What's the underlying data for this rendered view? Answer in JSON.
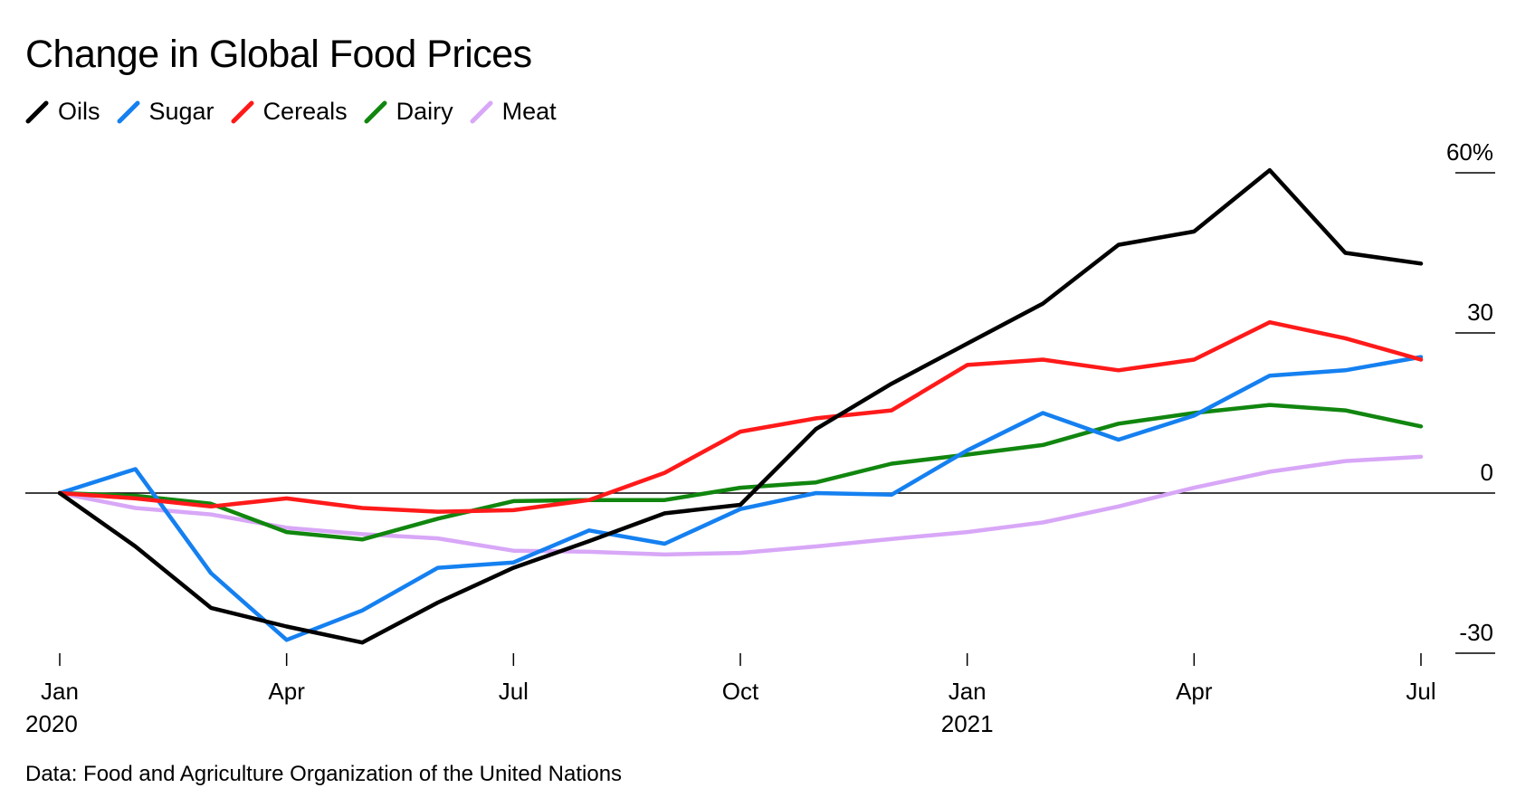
{
  "title": "Change in Global Food Prices",
  "source": "Data: Food and Agriculture Organization of the United Nations",
  "chart_data": {
    "type": "line",
    "title": "Change in Global Food Prices",
    "xlabel": "",
    "ylabel": "",
    "x": [
      "2020-01",
      "2020-02",
      "2020-03",
      "2020-04",
      "2020-05",
      "2020-06",
      "2020-07",
      "2020-08",
      "2020-09",
      "2020-10",
      "2020-11",
      "2020-12",
      "2021-01",
      "2021-02",
      "2021-03",
      "2021-04",
      "2021-05",
      "2021-06",
      "2021-07"
    ],
    "ylim": [
      -30,
      60
    ],
    "y_ticks": [
      {
        "value": 60,
        "label": "60%"
      },
      {
        "value": 30,
        "label": "30"
      },
      {
        "value": 0,
        "label": "0"
      },
      {
        "value": -30,
        "label": "-30"
      }
    ],
    "x_ticks": [
      {
        "x": "2020-01",
        "label": "Jan",
        "year": "2020"
      },
      {
        "x": "2020-04",
        "label": "Apr",
        "year": ""
      },
      {
        "x": "2020-07",
        "label": "Jul",
        "year": ""
      },
      {
        "x": "2020-10",
        "label": "Oct",
        "year": ""
      },
      {
        "x": "2021-01",
        "label": "Jan",
        "year": "2021"
      },
      {
        "x": "2021-04",
        "label": "Apr",
        "year": ""
      },
      {
        "x": "2021-07",
        "label": "Jul",
        "year": ""
      }
    ],
    "grid": false,
    "legend_position": "top-left",
    "series": [
      {
        "name": "Oils",
        "color": "#000000",
        "values": [
          0,
          -10,
          -21.5,
          -25,
          -28,
          -20.5,
          -14,
          -9,
          -3.8,
          -2.2,
          12,
          20.5,
          28,
          35.5,
          46.5,
          49,
          60.5,
          45,
          43
        ]
      },
      {
        "name": "Sugar",
        "color": "#1580f0",
        "values": [
          0,
          4.5,
          -15,
          -27.5,
          -22,
          -14,
          -13,
          -7,
          -9.5,
          -3,
          0,
          -0.3,
          8,
          15,
          10,
          14.5,
          22,
          23,
          25.5
        ]
      },
      {
        "name": "Cereals",
        "color": "#ff1a1a",
        "values": [
          0,
          -1,
          -2.5,
          -1,
          -2.8,
          -3.5,
          -3.2,
          -1.3,
          3.8,
          11.5,
          14,
          15.5,
          24,
          25,
          23,
          25,
          32,
          29,
          25
        ]
      },
      {
        "name": "Dairy",
        "color": "#11860f",
        "values": [
          0,
          -0.5,
          -2,
          -7.3,
          -8.7,
          -4.8,
          -1.5,
          -1.3,
          -1.3,
          1,
          2,
          5.5,
          7.2,
          9,
          13,
          15,
          16.5,
          15.5,
          12.5
        ]
      },
      {
        "name": "Meat",
        "color": "#d8a7f7",
        "values": [
          0,
          -2.8,
          -4,
          -6.5,
          -7.7,
          -8.5,
          -10.8,
          -11,
          -11.5,
          -11.2,
          -10,
          -8.6,
          -7.3,
          -5.5,
          -2.5,
          1,
          4,
          6,
          6.8
        ]
      }
    ]
  }
}
